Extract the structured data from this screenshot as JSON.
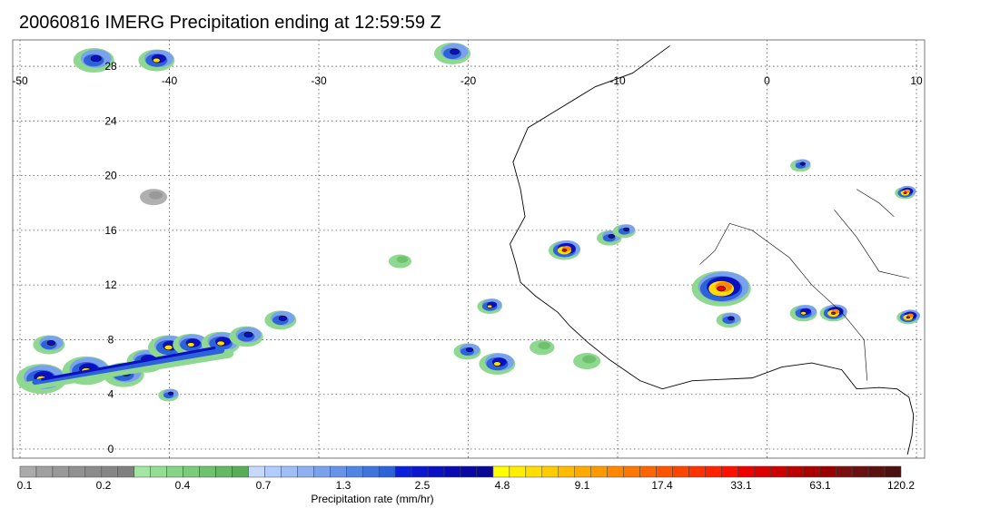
{
  "title": "20060816 IMERG Precipitation ending at 12:59:59 Z",
  "map": {
    "lon_range": [
      -50,
      10
    ],
    "lat_range": [
      -0.4,
      29.5
    ],
    "lon_ticks": [
      -50,
      -40,
      -30,
      -20,
      -10,
      0,
      10
    ],
    "lon_tick_labels": [
      "-50",
      "-40",
      "-30",
      "-20",
      "-10",
      "0",
      "10"
    ],
    "lat_ticks": [
      0,
      4,
      8,
      12,
      16,
      20,
      24,
      28
    ],
    "lat_tick_labels": [
      "0",
      "4",
      "8",
      "12",
      "16",
      "20",
      "24",
      "28"
    ],
    "grid": "dotted",
    "coastline_color": "#000000"
  },
  "colorbar": {
    "colors": [
      "#aaaaaa",
      "#a0a0a0",
      "#999999",
      "#919191",
      "#8c8c8c",
      "#868686",
      "#808080",
      "#a3e6a3",
      "#93de93",
      "#86d486",
      "#7acb7a",
      "#6ec26e",
      "#63b863",
      "#58ae58",
      "#c7d9ff",
      "#b3ccff",
      "#a1bff7",
      "#8fb1f0",
      "#7aa2ec",
      "#6693e8",
      "#5284e3",
      "#3f74de",
      "#2d62d9",
      "#0a1fd9",
      "#0a17cf",
      "#0a10c2",
      "#0a0ab3",
      "#0a08a3",
      "#080894",
      "#ffff00",
      "#ffee00",
      "#ffdd00",
      "#ffcc00",
      "#ffbb00",
      "#ffaa00",
      "#ff9900",
      "#ff8800",
      "#ff7700",
      "#ff6600",
      "#ff5500",
      "#ff4400",
      "#ff3300",
      "#ff2200",
      "#ff1100",
      "#ee0000",
      "#dd0000",
      "#cc0000",
      "#bb0000",
      "#aa0000",
      "#990000",
      "#7a1010",
      "#6b1010",
      "#5c1010",
      "#4d1010"
    ],
    "labels": [
      "0.1",
      "0.2",
      "0.4",
      "0.7",
      "1.3",
      "2.5",
      "4.8",
      "9.1",
      "17.4",
      "33.1",
      "63.1",
      "120.2"
    ],
    "title": "Precipitation rate (mm/hr)"
  },
  "cells": [
    {
      "lon": -48.5,
      "lat": 5.2,
      "size": 1.6,
      "peak": "yellow"
    },
    {
      "lon": -45.5,
      "lat": 5.8,
      "size": 1.5,
      "peak": "yellow"
    },
    {
      "lon": -43.0,
      "lat": 5.5,
      "size": 1.2,
      "peak": "blue"
    },
    {
      "lon": -41.5,
      "lat": 6.5,
      "size": 1.1,
      "peak": "yellow"
    },
    {
      "lon": -40.0,
      "lat": 7.5,
      "size": 1.2,
      "peak": "yellow"
    },
    {
      "lon": -38.5,
      "lat": 7.7,
      "size": 1.0,
      "peak": "yellow"
    },
    {
      "lon": -36.5,
      "lat": 7.8,
      "size": 1.1,
      "peak": "yellow"
    },
    {
      "lon": -34.8,
      "lat": 8.3,
      "size": 0.9,
      "peak": "blue"
    },
    {
      "lon": -32.5,
      "lat": 9.5,
      "size": 0.8,
      "peak": "blue"
    },
    {
      "lon": -48.0,
      "lat": 7.7,
      "size": 0.8,
      "peak": "blue"
    },
    {
      "lon": -45.0,
      "lat": 28.5,
      "size": 1.2,
      "peak": "blue"
    },
    {
      "lon": -40.8,
      "lat": 28.5,
      "size": 1.0,
      "peak": "yellow"
    },
    {
      "lon": -21.0,
      "lat": 29.0,
      "size": 1.0,
      "peak": "blue"
    },
    {
      "lon": -18.0,
      "lat": 6.3,
      "size": 1.0,
      "peak": "yellow"
    },
    {
      "lon": -20.0,
      "lat": 7.2,
      "size": 0.6,
      "peak": "blue"
    },
    {
      "lon": -18.5,
      "lat": 10.5,
      "size": 0.5,
      "peak": "yellow"
    },
    {
      "lon": -13.5,
      "lat": 14.6,
      "size": 0.8,
      "peak": "red"
    },
    {
      "lon": -10.5,
      "lat": 15.5,
      "size": 0.5,
      "peak": "blue"
    },
    {
      "lon": -9.5,
      "lat": 16.0,
      "size": 0.4,
      "peak": "blue"
    },
    {
      "lon": -3.0,
      "lat": 11.8,
      "size": 2.0,
      "peak": "red"
    },
    {
      "lon": -2.5,
      "lat": 9.5,
      "size": 0.5,
      "peak": "blue"
    },
    {
      "lon": 2.5,
      "lat": 10.0,
      "size": 0.6,
      "peak": "yellow"
    },
    {
      "lon": 4.5,
      "lat": 10.0,
      "size": 0.6,
      "peak": "red"
    },
    {
      "lon": 9.5,
      "lat": 9.7,
      "size": 0.4,
      "peak": "red"
    },
    {
      "lon": 9.3,
      "lat": 18.8,
      "size": 0.3,
      "peak": "red"
    },
    {
      "lon": 2.3,
      "lat": 20.8,
      "size": 0.3,
      "peak": "blue"
    },
    {
      "lon": -40.0,
      "lat": 4.0,
      "size": 0.3,
      "peak": "blue"
    },
    {
      "lon": -15.0,
      "lat": 7.5,
      "size": 0.5,
      "peak": "green"
    },
    {
      "lon": -12.0,
      "lat": 6.5,
      "size": 0.6,
      "peak": "green"
    },
    {
      "lon": -41.0,
      "lat": 18.5,
      "size": 0.6,
      "peak": "gray"
    },
    {
      "lon": -24.5,
      "lat": 13.8,
      "size": 0.4,
      "peak": "green"
    }
  ]
}
